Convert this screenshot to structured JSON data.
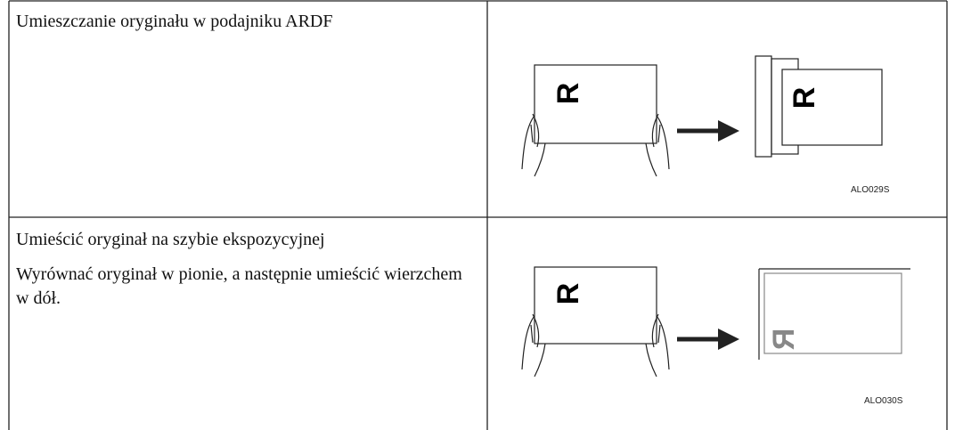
{
  "table": {
    "rows": [
      {
        "paragraphs": [
          "Umieszczanie oryginału w podajniku ARDF"
        ],
        "figure": {
          "letter": "R",
          "caption": "ALO029S"
        }
      },
      {
        "paragraphs": [
          "Umieścić oryginał na szybie ekspozycyjnej",
          "Wyrównać oryginał w pionie, a następnie umieścić wierzchem w dół."
        ],
        "figure": {
          "letter": "R",
          "caption": "ALO030S"
        }
      }
    ]
  }
}
